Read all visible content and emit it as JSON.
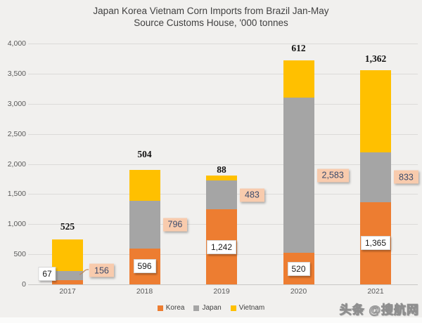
{
  "title": {
    "line1": "Japan Korea Vietnam Corn Imports from Brazil Jan-May",
    "line2": "Source Customs House, '000 tonnes"
  },
  "watermark": "头条 @搜航网",
  "colors": {
    "korea": "#ED7D31",
    "japan": "#A5A5A5",
    "vietnam": "#FFC000",
    "callout_bg": "#F8CBAD",
    "callout_text": "#3B4A6B",
    "background": "#F1F0EE",
    "gridline": "#DCDBD9",
    "axis_text": "#595959"
  },
  "chart_data": {
    "type": "bar",
    "stacked": true,
    "title": "Japan Korea Vietnam Corn Imports from Brazil Jan-May",
    "subtitle": "Source Customs House, '000 tonnes",
    "categories": [
      "2017",
      "2018",
      "2019",
      "2020",
      "2021"
    ],
    "series": [
      {
        "name": "Korea",
        "color": "#ED7D31",
        "values": [
          67,
          596,
          1242,
          520,
          1365
        ]
      },
      {
        "name": "Japan",
        "color": "#A5A5A5",
        "values": [
          156,
          796,
          483,
          2583,
          833
        ]
      },
      {
        "name": "Vietnam",
        "color": "#FFC000",
        "values": [
          525,
          504,
          88,
          612,
          1362
        ]
      }
    ],
    "ylim": [
      0,
      4000
    ],
    "ytick_labels": [
      "0",
      "500",
      "1,000",
      "1,500",
      "2,000",
      "2,500",
      "3,000",
      "3,500",
      "4,000"
    ],
    "grid": true,
    "legend_position": "bottom",
    "data_labels": {
      "korea": [
        "67",
        "596",
        "1,242",
        "520",
        "1,365"
      ],
      "japan": [
        "156",
        "796",
        "483",
        "2,583",
        "833"
      ],
      "vietnam": [
        "525",
        "504",
        "88",
        "612",
        "1,362"
      ]
    }
  }
}
